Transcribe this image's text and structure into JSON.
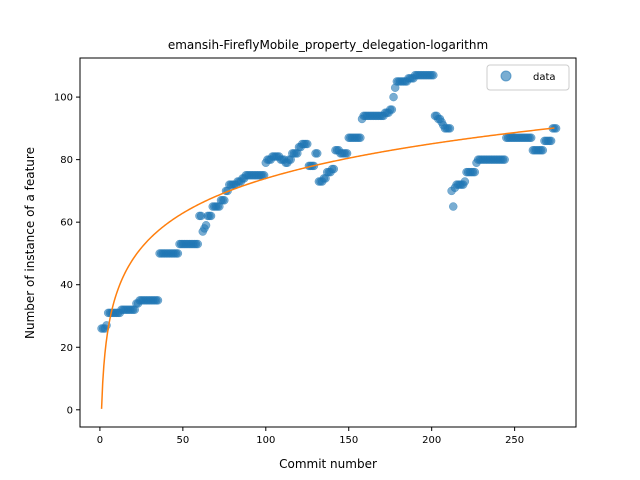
{
  "chart_data": {
    "type": "scatter",
    "title": "emansih-FireflyMobile_property_delegation-logarithm",
    "xlabel": "Commit number",
    "ylabel": "Number of instance of a feature",
    "xlim": [
      -12,
      287
    ],
    "ylim": [
      -5.5,
      112.5
    ],
    "xticks": [
      0,
      50,
      100,
      150,
      200,
      250
    ],
    "yticks": [
      0,
      20,
      40,
      60,
      80,
      100
    ],
    "grid": false,
    "legend_position": "top-right",
    "colors": {
      "data": "#1f77b4",
      "fit": "#ff7f0e"
    },
    "series": [
      {
        "name": "data",
        "kind": "scatter",
        "points": [
          [
            1,
            26
          ],
          [
            2,
            26
          ],
          [
            3,
            26
          ],
          [
            4,
            27
          ],
          [
            5,
            31
          ],
          [
            6,
            31
          ],
          [
            7,
            31
          ],
          [
            8,
            31
          ],
          [
            9,
            31
          ],
          [
            10,
            31
          ],
          [
            11,
            31
          ],
          [
            12,
            31
          ],
          [
            13,
            32
          ],
          [
            14,
            32
          ],
          [
            15,
            32
          ],
          [
            16,
            32
          ],
          [
            17,
            32
          ],
          [
            18,
            32
          ],
          [
            19,
            32
          ],
          [
            20,
            32
          ],
          [
            21,
            32
          ],
          [
            22,
            34
          ],
          [
            23,
            34
          ],
          [
            24,
            35
          ],
          [
            25,
            35
          ],
          [
            26,
            35
          ],
          [
            27,
            35
          ],
          [
            28,
            35
          ],
          [
            29,
            35
          ],
          [
            30,
            35
          ],
          [
            31,
            35
          ],
          [
            32,
            35
          ],
          [
            33,
            35
          ],
          [
            34,
            35
          ],
          [
            35,
            35
          ],
          [
            36,
            50
          ],
          [
            37,
            50
          ],
          [
            38,
            50
          ],
          [
            39,
            50
          ],
          [
            40,
            50
          ],
          [
            41,
            50
          ],
          [
            42,
            50
          ],
          [
            43,
            50
          ],
          [
            44,
            50
          ],
          [
            45,
            50
          ],
          [
            46,
            50
          ],
          [
            47,
            50
          ],
          [
            48,
            53
          ],
          [
            49,
            53
          ],
          [
            50,
            53
          ],
          [
            51,
            53
          ],
          [
            52,
            53
          ],
          [
            53,
            53
          ],
          [
            54,
            53
          ],
          [
            55,
            53
          ],
          [
            56,
            53
          ],
          [
            57,
            53
          ],
          [
            58,
            53
          ],
          [
            59,
            53
          ],
          [
            60,
            62
          ],
          [
            61,
            62
          ],
          [
            62,
            57
          ],
          [
            63,
            58
          ],
          [
            64,
            59
          ],
          [
            65,
            62
          ],
          [
            66,
            62
          ],
          [
            67,
            62
          ],
          [
            68,
            65
          ],
          [
            69,
            65
          ],
          [
            70,
            65
          ],
          [
            71,
            65
          ],
          [
            72,
            65
          ],
          [
            73,
            67
          ],
          [
            74,
            67
          ],
          [
            75,
            67
          ],
          [
            76,
            70
          ],
          [
            77,
            70
          ],
          [
            78,
            72
          ],
          [
            79,
            72
          ],
          [
            80,
            72
          ],
          [
            81,
            72
          ],
          [
            82,
            72
          ],
          [
            83,
            73
          ],
          [
            84,
            73
          ],
          [
            85,
            73
          ],
          [
            86,
            74
          ],
          [
            87,
            74
          ],
          [
            88,
            75
          ],
          [
            89,
            75
          ],
          [
            90,
            75
          ],
          [
            91,
            75
          ],
          [
            92,
            75
          ],
          [
            93,
            75
          ],
          [
            94,
            75
          ],
          [
            95,
            75
          ],
          [
            96,
            75
          ],
          [
            97,
            75
          ],
          [
            98,
            75
          ],
          [
            99,
            75
          ],
          [
            100,
            79
          ],
          [
            101,
            80
          ],
          [
            102,
            80
          ],
          [
            103,
            80
          ],
          [
            104,
            81
          ],
          [
            105,
            81
          ],
          [
            106,
            81
          ],
          [
            107,
            81
          ],
          [
            108,
            81
          ],
          [
            109,
            80
          ],
          [
            110,
            80
          ],
          [
            111,
            80
          ],
          [
            112,
            79
          ],
          [
            113,
            79
          ],
          [
            114,
            80
          ],
          [
            115,
            80
          ],
          [
            116,
            82
          ],
          [
            117,
            82
          ],
          [
            118,
            82
          ],
          [
            119,
            82
          ],
          [
            120,
            84
          ],
          [
            121,
            84
          ],
          [
            122,
            85
          ],
          [
            123,
            85
          ],
          [
            124,
            85
          ],
          [
            125,
            85
          ],
          [
            126,
            78
          ],
          [
            127,
            78
          ],
          [
            128,
            78
          ],
          [
            129,
            78
          ],
          [
            130,
            82
          ],
          [
            131,
            82
          ],
          [
            132,
            73
          ],
          [
            133,
            73
          ],
          [
            134,
            73
          ],
          [
            135,
            74
          ],
          [
            136,
            74
          ],
          [
            137,
            76
          ],
          [
            138,
            76
          ],
          [
            139,
            76
          ],
          [
            140,
            77
          ],
          [
            141,
            77
          ],
          [
            142,
            83
          ],
          [
            143,
            83
          ],
          [
            144,
            83
          ],
          [
            145,
            82
          ],
          [
            146,
            82
          ],
          [
            147,
            82
          ],
          [
            148,
            82
          ],
          [
            149,
            82
          ],
          [
            150,
            87
          ],
          [
            151,
            87
          ],
          [
            152,
            87
          ],
          [
            153,
            87
          ],
          [
            154,
            87
          ],
          [
            155,
            87
          ],
          [
            156,
            87
          ],
          [
            157,
            87
          ],
          [
            158,
            93
          ],
          [
            159,
            94
          ],
          [
            160,
            94
          ],
          [
            161,
            94
          ],
          [
            162,
            94
          ],
          [
            163,
            94
          ],
          [
            164,
            94
          ],
          [
            165,
            94
          ],
          [
            166,
            94
          ],
          [
            167,
            94
          ],
          [
            168,
            94
          ],
          [
            169,
            94
          ],
          [
            170,
            94
          ],
          [
            171,
            94
          ],
          [
            172,
            95
          ],
          [
            173,
            95
          ],
          [
            174,
            95
          ],
          [
            175,
            96
          ],
          [
            176,
            96
          ],
          [
            177,
            100
          ],
          [
            178,
            103
          ],
          [
            179,
            105
          ],
          [
            180,
            105
          ],
          [
            181,
            105
          ],
          [
            182,
            105
          ],
          [
            183,
            105
          ],
          [
            184,
            105
          ],
          [
            185,
            105
          ],
          [
            186,
            106
          ],
          [
            187,
            106
          ],
          [
            188,
            106
          ],
          [
            189,
            106
          ],
          [
            190,
            107
          ],
          [
            191,
            107
          ],
          [
            192,
            107
          ],
          [
            193,
            107
          ],
          [
            194,
            107
          ],
          [
            195,
            107
          ],
          [
            196,
            107
          ],
          [
            197,
            107
          ],
          [
            198,
            107
          ],
          [
            199,
            107
          ],
          [
            200,
            107
          ],
          [
            201,
            107
          ],
          [
            202,
            94
          ],
          [
            203,
            94
          ],
          [
            204,
            93
          ],
          [
            205,
            93
          ],
          [
            206,
            92
          ],
          [
            207,
            91
          ],
          [
            208,
            90
          ],
          [
            209,
            90
          ],
          [
            210,
            90
          ],
          [
            211,
            90
          ],
          [
            212,
            70
          ],
          [
            213,
            65
          ],
          [
            214,
            71
          ],
          [
            215,
            72
          ],
          [
            216,
            72
          ],
          [
            217,
            72
          ],
          [
            218,
            72
          ],
          [
            219,
            72
          ],
          [
            220,
            73
          ],
          [
            221,
            76
          ],
          [
            222,
            76
          ],
          [
            223,
            76
          ],
          [
            224,
            76
          ],
          [
            225,
            76
          ],
          [
            226,
            76
          ],
          [
            227,
            79
          ],
          [
            228,
            80
          ],
          [
            229,
            80
          ],
          [
            230,
            80
          ],
          [
            231,
            80
          ],
          [
            232,
            80
          ],
          [
            233,
            80
          ],
          [
            234,
            80
          ],
          [
            235,
            80
          ],
          [
            236,
            80
          ],
          [
            237,
            80
          ],
          [
            238,
            80
          ],
          [
            239,
            80
          ],
          [
            240,
            80
          ],
          [
            241,
            80
          ],
          [
            242,
            80
          ],
          [
            243,
            80
          ],
          [
            244,
            80
          ],
          [
            245,
            87
          ],
          [
            246,
            87
          ],
          [
            247,
            87
          ],
          [
            248,
            87
          ],
          [
            249,
            87
          ],
          [
            250,
            87
          ],
          [
            251,
            87
          ],
          [
            252,
            87
          ],
          [
            253,
            87
          ],
          [
            254,
            87
          ],
          [
            255,
            87
          ],
          [
            256,
            87
          ],
          [
            257,
            87
          ],
          [
            258,
            87
          ],
          [
            259,
            87
          ],
          [
            260,
            87
          ],
          [
            261,
            83
          ],
          [
            262,
            83
          ],
          [
            263,
            83
          ],
          [
            264,
            83
          ],
          [
            265,
            83
          ],
          [
            266,
            83
          ],
          [
            267,
            83
          ],
          [
            268,
            86
          ],
          [
            269,
            86
          ],
          [
            270,
            86
          ],
          [
            271,
            86
          ],
          [
            272,
            86
          ],
          [
            273,
            90
          ],
          [
            274,
            90
          ],
          [
            275,
            90
          ]
        ]
      },
      {
        "kind": "line",
        "curve": {
          "form": "a*ln(x)+b",
          "a": 16.0,
          "b": 0.3,
          "x_start": 1,
          "x_end": 274
        }
      }
    ]
  }
}
